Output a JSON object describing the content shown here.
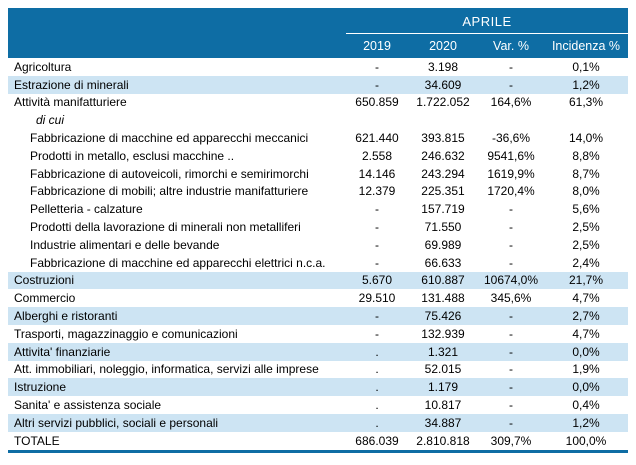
{
  "colors": {
    "header_bg": "#0E6DA4",
    "row_alt_bg": "#CDE4F3",
    "header_text": "#ffffff",
    "body_text": "#000000"
  },
  "table": {
    "header": {
      "month_label": "APRILE",
      "columns": [
        "2019",
        "2020",
        "Var. %",
        "Incidenza %"
      ]
    },
    "rows": [
      {
        "label": "Agricoltura",
        "tier": "top",
        "shaded": false,
        "v2019": "-",
        "v2020": "3.198",
        "var_pct": "-",
        "incidenza_pct": "0,1%"
      },
      {
        "label": "Estrazione di minerali",
        "tier": "top",
        "shaded": true,
        "v2019": "-",
        "v2020": "34.609",
        "var_pct": "-",
        "incidenza_pct": "1,2%"
      },
      {
        "label": "Attività manifatturiere",
        "tier": "top",
        "shaded": false,
        "v2019": "650.859",
        "v2020": "1.722.052",
        "var_pct": "164,6%",
        "incidenza_pct": "61,3%"
      },
      {
        "label": "di cui",
        "tier": "dicui",
        "shaded": false,
        "v2019": "",
        "v2020": "",
        "var_pct": "",
        "incidenza_pct": ""
      },
      {
        "label": "Fabbricazione di macchine ed apparecchi meccanici",
        "tier": "sub",
        "shaded": false,
        "v2019": "621.440",
        "v2020": "393.815",
        "var_pct": "-36,6%",
        "incidenza_pct": "14,0%"
      },
      {
        "label": "Prodotti in metallo, esclusi macchine ..",
        "tier": "sub",
        "shaded": false,
        "v2019": "2.558",
        "v2020": "246.632",
        "var_pct": "9541,6%",
        "incidenza_pct": "8,8%"
      },
      {
        "label": "Fabbricazione di autoveicoli, rimorchi e semirimorchi",
        "tier": "sub",
        "shaded": false,
        "v2019": "14.146",
        "v2020": "243.294",
        "var_pct": "1619,9%",
        "incidenza_pct": "8,7%"
      },
      {
        "label": "Fabbricazione di mobili; altre industrie manifatturiere",
        "tier": "sub",
        "shaded": false,
        "v2019": "12.379",
        "v2020": "225.351",
        "var_pct": "1720,4%",
        "incidenza_pct": "8,0%"
      },
      {
        "label": "Pelletteria - calzature",
        "tier": "sub",
        "shaded": false,
        "v2019": "-",
        "v2020": "157.719",
        "var_pct": "-",
        "incidenza_pct": "5,6%"
      },
      {
        "label": "Prodotti della lavorazione di minerali non metalliferi",
        "tier": "sub",
        "shaded": false,
        "v2019": "-",
        "v2020": "71.550",
        "var_pct": "-",
        "incidenza_pct": "2,5%"
      },
      {
        "label": "Industrie alimentari e delle bevande",
        "tier": "sub",
        "shaded": false,
        "v2019": "-",
        "v2020": "69.989",
        "var_pct": "-",
        "incidenza_pct": "2,5%"
      },
      {
        "label": "Fabbricazione di macchine ed apparecchi elettrici n.c.a.",
        "tier": "sub",
        "shaded": false,
        "v2019": "-",
        "v2020": "66.633",
        "var_pct": "-",
        "incidenza_pct": "2,4%"
      },
      {
        "label": "Costruzioni",
        "tier": "top",
        "shaded": true,
        "v2019": "5.670",
        "v2020": "610.887",
        "var_pct": "10674,0%",
        "incidenza_pct": "21,7%"
      },
      {
        "label": "Commercio",
        "tier": "top",
        "shaded": false,
        "v2019": "29.510",
        "v2020": "131.488",
        "var_pct": "345,6%",
        "incidenza_pct": "4,7%"
      },
      {
        "label": "Alberghi e ristoranti",
        "tier": "top",
        "shaded": true,
        "v2019": "-",
        "v2020": "75.426",
        "var_pct": "-",
        "incidenza_pct": "2,7%"
      },
      {
        "label": "Trasporti, magazzinaggio e comunicazioni",
        "tier": "top",
        "shaded": false,
        "v2019": "-",
        "v2020": "132.939",
        "var_pct": "-",
        "incidenza_pct": "4,7%"
      },
      {
        "label": "Attivita' finanziarie",
        "tier": "top",
        "shaded": true,
        "v2019": ".",
        "v2020": "1.321",
        "var_pct": "-",
        "incidenza_pct": "0,0%"
      },
      {
        "label": "Att. immobiliari, noleggio, informatica, servizi alle imprese",
        "tier": "top",
        "shaded": false,
        "v2019": ".",
        "v2020": "52.015",
        "var_pct": "-",
        "incidenza_pct": "1,9%"
      },
      {
        "label": "Istruzione",
        "tier": "top",
        "shaded": true,
        "v2019": ".",
        "v2020": "1.179",
        "var_pct": "-",
        "incidenza_pct": "0,0%"
      },
      {
        "label": "Sanita' e assistenza sociale",
        "tier": "top",
        "shaded": false,
        "v2019": ".",
        "v2020": "10.817",
        "var_pct": "-",
        "incidenza_pct": "0,4%"
      },
      {
        "label": "Altri servizi pubblici, sociali e personali",
        "tier": "top",
        "shaded": true,
        "v2019": ".",
        "v2020": "34.887",
        "var_pct": "-",
        "incidenza_pct": "1,2%"
      },
      {
        "label": "TOTALE",
        "tier": "top",
        "shaded": false,
        "v2019": "686.039",
        "v2020": "2.810.818",
        "var_pct": "309,7%",
        "incidenza_pct": "100,0%"
      }
    ]
  }
}
